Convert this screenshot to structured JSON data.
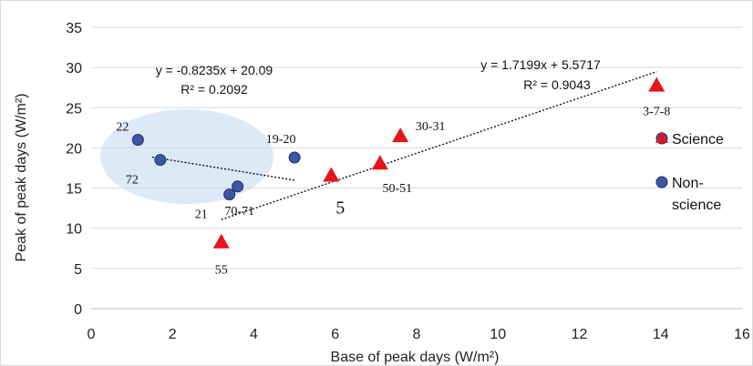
{
  "chart_data": {
    "type": "scatter",
    "xlabel": "Base of peak days (W/m²)",
    "ylabel": "Peak of peak days (W/m²)",
    "xlim": [
      0,
      16
    ],
    "ylim": [
      0,
      35
    ],
    "x_ticks": [
      0,
      2,
      4,
      6,
      8,
      10,
      12,
      14,
      16
    ],
    "y_ticks": [
      0,
      5,
      10,
      15,
      20,
      25,
      30,
      35
    ],
    "grid": "horizontal",
    "legend_position": "right",
    "series": [
      {
        "name": "Science",
        "marker": "triangle",
        "color": "#e8141b",
        "points": [
          {
            "x": 3.2,
            "y": 8.3,
            "label": "55"
          },
          {
            "x": 5.9,
            "y": 16.6,
            "label": "5"
          },
          {
            "x": 7.1,
            "y": 18.1,
            "label": "50-51"
          },
          {
            "x": 7.6,
            "y": 21.5,
            "label": "30-31"
          },
          {
            "x": 13.9,
            "y": 27.8,
            "label": "3-7-8"
          }
        ]
      },
      {
        "name": "Non-science",
        "marker": "circle",
        "color": "#3f56a6",
        "points": [
          {
            "x": 1.15,
            "y": 21.0,
            "label": "22"
          },
          {
            "x": 1.7,
            "y": 18.5,
            "label": "72"
          },
          {
            "x": 3.4,
            "y": 14.2,
            "label": "21"
          },
          {
            "x": 3.6,
            "y": 15.2,
            "label": "70-71"
          },
          {
            "x": 5.0,
            "y": 18.8,
            "label": "19-20"
          }
        ]
      }
    ],
    "trendlines": [
      {
        "series": "Non-science",
        "slope": -0.8235,
        "intercept": 20.09,
        "x_range": [
          1.5,
          5.0
        ],
        "equation": "y = -0.8235x + 20.09",
        "r2": "R² = 0.2092"
      },
      {
        "series": "Science",
        "slope": 1.7199,
        "intercept": 5.5717,
        "x_range": [
          3.2,
          13.9
        ],
        "equation": "y = 1.7199x + 5.5717",
        "r2": "R² = 0.9043"
      }
    ],
    "legend": {
      "science": "Science",
      "nonscience_line1": "Non-",
      "nonscience_line2": "science"
    },
    "colors": {
      "triangle": "#e8141b",
      "circle": "#3f56a6",
      "ellipse": "#dce9f7",
      "grid": "#d9d9d9"
    }
  }
}
